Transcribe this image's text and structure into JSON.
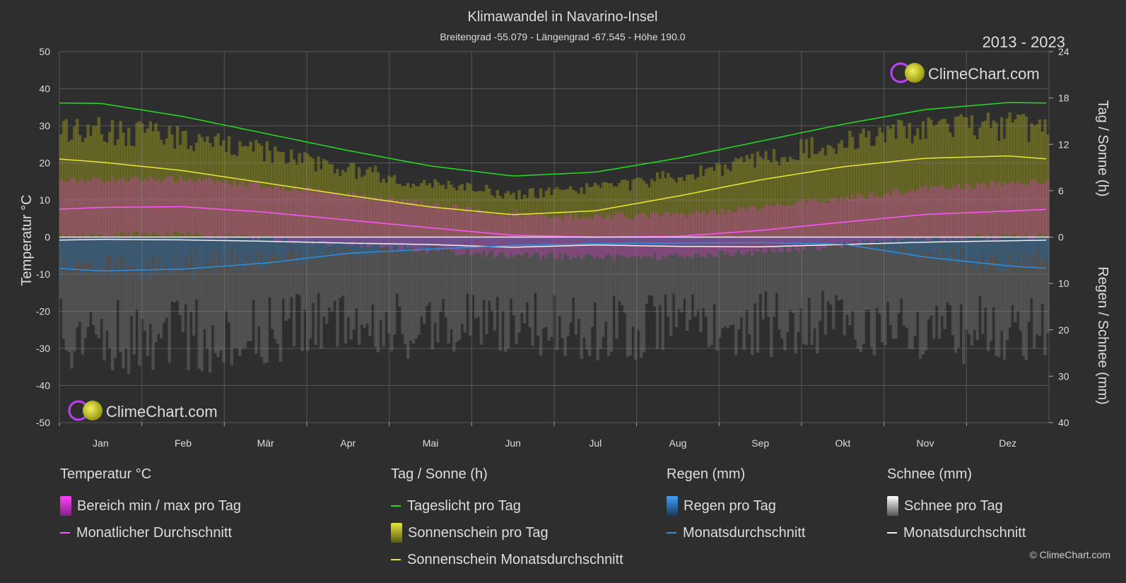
{
  "title": "Klimawandel in Navarino-Insel",
  "subtitle": "Breitengrad -55.079 - Längengrad -67.545 - Höhe 190.0",
  "year_range": "2013 - 2023",
  "logo_text": "ClimeChart.com",
  "copyright": "© ClimeChart.com",
  "colors": {
    "daylight": "#22dd22",
    "sunshine_avg": "#e8e830",
    "temp_avg": "#ff55ff",
    "rain_avg": "#2e8fe0",
    "snow_avg": "#eeeeee",
    "temp_band": "#d040c0",
    "sun_band": "#8a8a20",
    "rain_band": "#2a5f8a",
    "snow_band": "#6a6a6a"
  },
  "chart_data": {
    "type": "line",
    "months": [
      "Jan",
      "Feb",
      "Mär",
      "Apr",
      "Mai",
      "Jun",
      "Jul",
      "Aug",
      "Sep",
      "Okt",
      "Nov",
      "Dez"
    ],
    "left_axis": {
      "label": "Temperatur °C",
      "min": -50,
      "max": 50,
      "ticks": [
        "50",
        "40",
        "30",
        "20",
        "10",
        "0",
        "-10",
        "-20",
        "-30",
        "-40",
        "-50"
      ]
    },
    "right_axis_top": {
      "label": "Tag / Sonne (h)",
      "min": 0,
      "max": 24,
      "ticks": [
        "24",
        "18",
        "12",
        "6",
        "0"
      ]
    },
    "right_axis_bottom": {
      "label": "Regen / Schnee (mm)",
      "min": 0,
      "max": 40,
      "ticks": [
        "10",
        "20",
        "30",
        "40"
      ]
    },
    "series": [
      {
        "name": "Tageslicht pro Tag",
        "axis": "hours",
        "values": [
          17.3,
          15.6,
          13.4,
          11.2,
          9.2,
          7.9,
          8.4,
          10.2,
          12.4,
          14.6,
          16.5,
          17.4
        ]
      },
      {
        "name": "Sonnenschein Monatsdurchschnitt",
        "axis": "hours",
        "values": [
          9.7,
          8.6,
          7.0,
          5.4,
          3.9,
          2.9,
          3.4,
          5.3,
          7.4,
          9.1,
          10.2,
          10.5
        ]
      },
      {
        "name": "Monatlicher Durchschnitt",
        "axis": "temp",
        "values": [
          8.0,
          8.2,
          6.7,
          4.6,
          2.5,
          0.5,
          0.0,
          0.2,
          1.8,
          4.0,
          6.1,
          7.0
        ]
      },
      {
        "name": "Monatsdurchschnitt Regen",
        "axis": "mm",
        "values": [
          7.3,
          6.9,
          5.6,
          3.5,
          2.6,
          1.8,
          1.4,
          1.3,
          1.2,
          1.5,
          4.3,
          6.2
        ]
      },
      {
        "name": "Monatsdurchschnitt Schnee",
        "axis": "mm",
        "values": [
          0.5,
          0.6,
          0.9,
          1.3,
          1.6,
          2.2,
          1.7,
          2.0,
          2.1,
          1.6,
          1.1,
          0.8
        ]
      }
    ],
    "daily_temp_range": {
      "min": [
        1.5,
        1.8,
        0.5,
        -1.0,
        -2.5,
        -4.0,
        -4.5,
        -4.0,
        -3.0,
        -1.0,
        0.5,
        1.0
      ],
      "max": [
        14.5,
        14.6,
        13.0,
        10.5,
        7.5,
        5.0,
        4.5,
        5.0,
        7.0,
        9.5,
        12.0,
        13.5
      ]
    },
    "daily_sunshine_max": [
      15.0,
      13.8,
      12.0,
      9.5,
      7.5,
      6.0,
      6.8,
      8.5,
      11.0,
      13.5,
      15.0,
      15.5
    ],
    "daily_precip_max": [
      30,
      30,
      28,
      25,
      27,
      25,
      28,
      26,
      26,
      25,
      27,
      29
    ]
  },
  "legend": {
    "temp": {
      "title": "Temperatur °C",
      "items": [
        "Bereich min / max pro Tag",
        "Monatlicher Durchschnitt"
      ]
    },
    "sun": {
      "title": "Tag / Sonne (h)",
      "items": [
        "Tageslicht pro Tag",
        "Sonnenschein pro Tag",
        "Sonnenschein Monatsdurchschnitt"
      ]
    },
    "rain": {
      "title": "Regen (mm)",
      "items": [
        "Regen pro Tag",
        "Monatsdurchschnitt"
      ]
    },
    "snow": {
      "title": "Schnee (mm)",
      "items": [
        "Schnee pro Tag",
        "Monatsdurchschnitt"
      ]
    }
  }
}
